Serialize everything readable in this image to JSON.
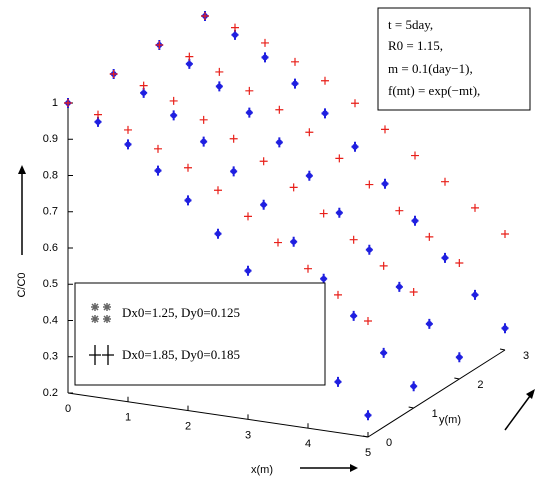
{
  "chart_data": {
    "type": "scatter3d",
    "xlabel": "x(m)",
    "ylabel": "y(m)",
    "zlabel": "C/C0",
    "xlim": [
      0,
      5
    ],
    "ylim": [
      0,
      3
    ],
    "zlim": [
      0.2,
      1
    ],
    "xticks": [
      0,
      1,
      2,
      3,
      4,
      5
    ],
    "yticks": [
      0,
      1,
      2,
      3
    ],
    "zticks": [
      0.2,
      0.3,
      0.4,
      0.5,
      0.6,
      0.7,
      0.8,
      0.9,
      1
    ],
    "annotations": [
      "t = 5day,",
      "R0 = 1.15,",
      "m = 0.1(day−1),",
      "f(mt) = exp(−mt),"
    ],
    "series": [
      {
        "name": "Dx0=1.25, Dy0=0.125",
        "color": "#1f1fe0",
        "marker": "star",
        "x": [
          0,
          0.5,
          1,
          1.5,
          2,
          2.5,
          3,
          3.5,
          4,
          4.5,
          5,
          0,
          0.5,
          1,
          1.5,
          2,
          2.5,
          3,
          3.5,
          4,
          4.5,
          5,
          0,
          0.5,
          1,
          1.5,
          2,
          2.5,
          3,
          3.5,
          4,
          4.5,
          5,
          0,
          0.5,
          1,
          1.5,
          2,
          2.5,
          3,
          3.5,
          4,
          4.5,
          5
        ],
        "y": [
          0,
          0,
          0,
          0,
          0,
          0,
          0,
          0,
          0,
          0,
          0,
          1,
          1,
          1,
          1,
          1,
          1,
          1,
          1,
          1,
          1,
          1,
          2,
          2,
          2,
          2,
          2,
          2,
          2,
          2,
          2,
          2,
          2,
          3,
          3,
          3,
          3,
          3,
          3,
          3,
          3,
          3,
          3,
          3
        ],
        "values": [
          1,
          0.96,
          0.91,
          0.85,
          0.78,
          0.7,
          0.61,
          0.52,
          0.43,
          0.34,
          0.26,
          1,
          0.96,
          0.91,
          0.85,
          0.78,
          0.7,
          0.61,
          0.52,
          0.43,
          0.34,
          0.26,
          1,
          0.96,
          0.91,
          0.85,
          0.78,
          0.7,
          0.61,
          0.52,
          0.43,
          0.34,
          0.26,
          1,
          0.96,
          0.91,
          0.85,
          0.78,
          0.7,
          0.61,
          0.52,
          0.43,
          0.34,
          0.26
        ]
      },
      {
        "name": "Dx0=1.85, Dy0=0.185",
        "color": "#e8201a",
        "marker": "plus",
        "x": [
          0,
          0.5,
          1,
          1.5,
          2,
          2.5,
          3,
          3.5,
          4,
          4.5,
          5,
          0,
          0.5,
          1,
          1.5,
          2,
          2.5,
          3,
          3.5,
          4,
          4.5,
          5,
          0,
          0.5,
          1,
          1.5,
          2,
          2.5,
          3,
          3.5,
          4,
          4.5,
          5,
          0,
          0.5,
          1,
          1.5,
          2,
          2.5,
          3,
          3.5,
          4,
          4.5,
          5
        ],
        "y": [
          0,
          0,
          0,
          0,
          0,
          0,
          0,
          0,
          0,
          0,
          0,
          1,
          1,
          1,
          1,
          1,
          1,
          1,
          1,
          1,
          1,
          1,
          2,
          2,
          2,
          2,
          2,
          2,
          2,
          2,
          2,
          2,
          2,
          3,
          3,
          3,
          3,
          3,
          3,
          3,
          3,
          3,
          3,
          3
        ],
        "values": [
          1,
          0.98,
          0.95,
          0.91,
          0.87,
          0.82,
          0.76,
          0.7,
          0.64,
          0.58,
          0.52,
          1,
          0.98,
          0.95,
          0.91,
          0.87,
          0.82,
          0.76,
          0.7,
          0.64,
          0.58,
          0.52,
          1,
          0.98,
          0.95,
          0.91,
          0.87,
          0.82,
          0.76,
          0.7,
          0.64,
          0.58,
          0.52,
          1,
          0.98,
          0.95,
          0.91,
          0.87,
          0.82,
          0.76,
          0.7,
          0.64,
          0.58,
          0.52
        ]
      }
    ]
  }
}
